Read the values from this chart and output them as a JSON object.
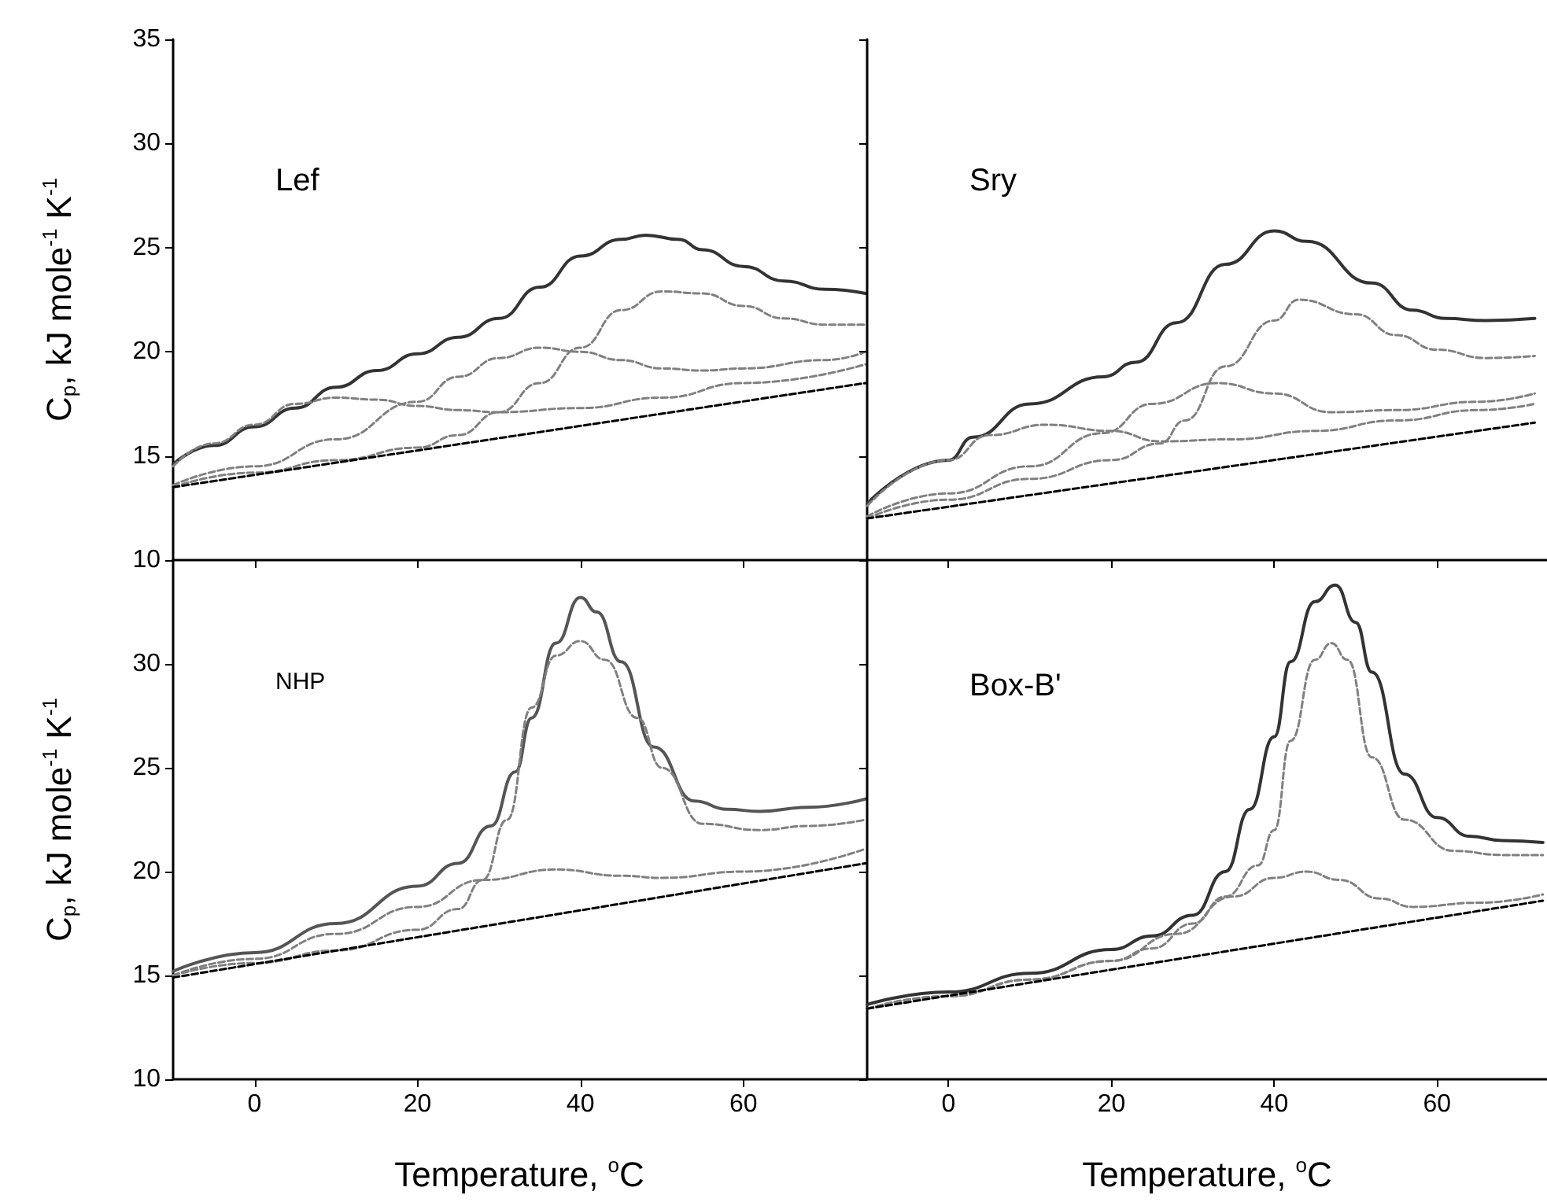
{
  "chart_data": [
    {
      "type": "line",
      "title": "Lef",
      "ylabel": "C$_{p}$, kJ mole$^{-1}$ K$^{-1}$",
      "xlim": [
        -10,
        75
      ],
      "xticks": [
        0,
        20,
        40,
        60
      ],
      "ylim": [
        10,
        35
      ],
      "yticks": [
        10,
        15,
        20,
        25,
        30,
        35
      ],
      "tick_labels": "y",
      "marker": "none",
      "series": [
        {
          "color": "#333333",
          "line_style": "solid",
          "x": [
            -10,
            -5,
            0,
            5,
            10,
            15,
            20,
            25,
            30,
            35,
            40,
            45,
            48,
            52,
            55,
            60,
            65,
            70,
            75
          ],
          "values": [
            14.6,
            15.5,
            16.4,
            17.3,
            18.3,
            19.1,
            19.9,
            20.7,
            21.6,
            23.1,
            24.6,
            25.4,
            25.6,
            25.4,
            24.9,
            24.1,
            23.4,
            23.0,
            22.8
          ]
        },
        {
          "color": "#808080",
          "line_style": "dashed",
          "x": [
            -10,
            -5,
            0,
            5,
            10,
            15,
            20,
            25,
            30,
            40,
            50,
            60,
            75
          ],
          "values": [
            14.5,
            15.6,
            16.5,
            17.5,
            17.8,
            17.7,
            17.4,
            17.2,
            17.1,
            17.3,
            17.8,
            18.5,
            19.4
          ]
        },
        {
          "color": "#808080",
          "line_style": "dashed",
          "x": [
            -10,
            0,
            10,
            20,
            25,
            30,
            35,
            40,
            45,
            50,
            55,
            60,
            70,
            75
          ],
          "values": [
            13.6,
            14.5,
            15.8,
            17.6,
            18.8,
            19.7,
            20.2,
            20.0,
            19.6,
            19.2,
            19.1,
            19.2,
            19.6,
            20.0
          ]
        },
        {
          "color": "#808080",
          "line_style": "dashed",
          "x": [
            -10,
            0,
            10,
            20,
            25,
            30,
            35,
            40,
            45,
            50,
            55,
            60,
            65,
            70,
            75
          ],
          "values": [
            13.5,
            14.2,
            14.8,
            15.4,
            16.0,
            17.1,
            18.5,
            20.2,
            22.0,
            22.9,
            22.8,
            22.2,
            21.6,
            21.3,
            21.3
          ]
        },
        {
          "color": "#000000",
          "line_style": "dashed",
          "x": [
            -10,
            75
          ],
          "values": [
            13.5,
            18.5
          ]
        }
      ]
    },
    {
      "type": "line",
      "title": "Sry",
      "xlim": [
        -10,
        73.5
      ],
      "xticks": [
        0,
        20,
        40,
        60
      ],
      "ylim": [
        10,
        35
      ],
      "yticks": [
        10,
        15,
        20,
        25,
        30,
        35
      ],
      "tick_labels": false,
      "marker": "none",
      "series": [
        {
          "color": "#333333",
          "line_style": "solid",
          "x": [
            -10,
            0,
            3,
            10,
            19,
            23,
            28,
            34,
            40,
            44,
            52,
            57,
            61,
            66,
            72
          ],
          "values": [
            12.7,
            14.8,
            15.9,
            17.5,
            18.8,
            19.5,
            21.4,
            24.2,
            25.8,
            25.3,
            23.3,
            22.0,
            21.6,
            21.5,
            21.6
          ]
        },
        {
          "color": "#808080",
          "line_style": "dashed",
          "x": [
            -10,
            0,
            5,
            12,
            20,
            26,
            35,
            45,
            55,
            65,
            72
          ],
          "values": [
            12.6,
            14.8,
            16.0,
            16.5,
            16.2,
            15.7,
            15.8,
            16.2,
            16.7,
            17.2,
            17.5
          ]
        },
        {
          "color": "#808080",
          "line_style": "dashed",
          "x": [
            -10,
            0,
            10,
            19,
            25,
            33,
            40,
            47,
            55,
            65,
            72
          ],
          "values": [
            12.1,
            13.2,
            14.5,
            16.1,
            17.5,
            18.5,
            18.0,
            17.1,
            17.2,
            17.6,
            18.0
          ]
        },
        {
          "color": "#808080",
          "line_style": "dashed",
          "x": [
            -10,
            0,
            10,
            20,
            26,
            29,
            34,
            40,
            43,
            50,
            55,
            60,
            66,
            72
          ],
          "values": [
            12.0,
            12.9,
            13.9,
            14.8,
            15.6,
            16.7,
            19.3,
            21.5,
            22.5,
            21.8,
            20.8,
            20.1,
            19.7,
            19.8
          ]
        },
        {
          "color": "#000000",
          "line_style": "dashed",
          "x": [
            -10,
            72
          ],
          "values": [
            12.0,
            16.6
          ]
        }
      ]
    },
    {
      "type": "line",
      "title": "NHP",
      "xlabel": "Temperature, $^{o}$C",
      "ylabel": "C$_{p}$, kJ mole$^{-1}$ K$^{-1}$",
      "xlim": [
        -10,
        75
      ],
      "xticks": [
        0,
        20,
        40,
        60
      ],
      "ylim": [
        10,
        35
      ],
      "yticks": [
        10,
        15,
        20,
        25,
        30,
        {
          "value": 35,
          "label": null
        }
      ],
      "marker": "none",
      "series": [
        {
          "color": "#555555",
          "line_style": "solid",
          "x": [
            -10,
            0,
            10,
            20,
            25,
            29,
            32,
            34,
            37,
            40,
            42,
            45,
            49,
            54,
            58,
            62,
            68,
            75
          ],
          "values": [
            15.2,
            16.1,
            17.5,
            19.3,
            20.4,
            22.2,
            24.8,
            27.4,
            31.0,
            33.2,
            32.5,
            30.1,
            26.0,
            23.4,
            23.0,
            22.9,
            23.1,
            23.5
          ]
        },
        {
          "color": "#808080",
          "line_style": "dashed",
          "x": [
            -10,
            0,
            10,
            20,
            25,
            28,
            31,
            34,
            37,
            40,
            43,
            47,
            50,
            55,
            62,
            68,
            75
          ],
          "values": [
            15.0,
            15.6,
            16.2,
            17.2,
            18.2,
            19.6,
            22.5,
            27.9,
            30.4,
            31.1,
            30.2,
            27.4,
            25.0,
            22.3,
            22.0,
            22.2,
            22.5
          ]
        },
        {
          "color": "#808080",
          "line_style": "dashed",
          "x": [
            -10,
            0,
            10,
            20,
            28,
            37,
            45,
            50,
            60,
            75
          ],
          "values": [
            15.0,
            15.8,
            17.0,
            18.3,
            19.6,
            20.1,
            19.8,
            19.7,
            20.0,
            21.1
          ]
        },
        {
          "color": "#000000",
          "line_style": "dashed",
          "x": [
            -10,
            75
          ],
          "values": [
            14.9,
            20.4
          ]
        }
      ]
    },
    {
      "type": "line",
      "title": "Box-B'",
      "xlabel": "Temperature, $^{o}$C",
      "xlim": [
        -10,
        73.5
      ],
      "xticks": [
        0,
        20,
        40,
        60
      ],
      "ylim": [
        10,
        35
      ],
      "yticks": [
        10,
        15,
        20,
        25,
        30,
        35
      ],
      "tick_labels": "x",
      "marker": "none",
      "series": [
        {
          "color": "#333333",
          "line_style": "solid",
          "x": [
            -10,
            0,
            10,
            20,
            25,
            30,
            34,
            37,
            40,
            42,
            45,
            47.5,
            50,
            52,
            56,
            60,
            64,
            68,
            73
          ],
          "values": [
            13.6,
            14.2,
            15.1,
            16.25,
            16.9,
            17.9,
            20.0,
            23.0,
            26.5,
            30.1,
            33.0,
            33.8,
            32.0,
            29.6,
            24.7,
            22.6,
            21.7,
            21.5,
            21.4
          ]
        },
        {
          "color": "#808080",
          "line_style": "dashed",
          "x": [
            -10,
            0,
            10,
            20,
            25,
            30,
            34,
            38,
            40,
            42,
            45,
            47,
            49,
            52,
            56,
            62,
            68,
            73
          ],
          "values": [
            13.4,
            14.0,
            14.8,
            15.7,
            16.3,
            17.5,
            18.8,
            20.3,
            22.0,
            26.3,
            30.2,
            31.0,
            30.2,
            25.5,
            22.5,
            21.0,
            20.8,
            20.8
          ]
        },
        {
          "color": "#808080",
          "line_style": "dashed",
          "x": [
            -10,
            0,
            10,
            20,
            28,
            35,
            40,
            44,
            48,
            53,
            57,
            65,
            73
          ],
          "values": [
            13.4,
            14.0,
            14.8,
            15.7,
            17.0,
            18.8,
            19.7,
            20.0,
            19.6,
            18.7,
            18.3,
            18.5,
            18.9
          ]
        },
        {
          "color": "#000000",
          "line_style": "dashed",
          "x": [
            -10,
            73
          ],
          "values": [
            13.4,
            18.6
          ]
        }
      ]
    }
  ]
}
